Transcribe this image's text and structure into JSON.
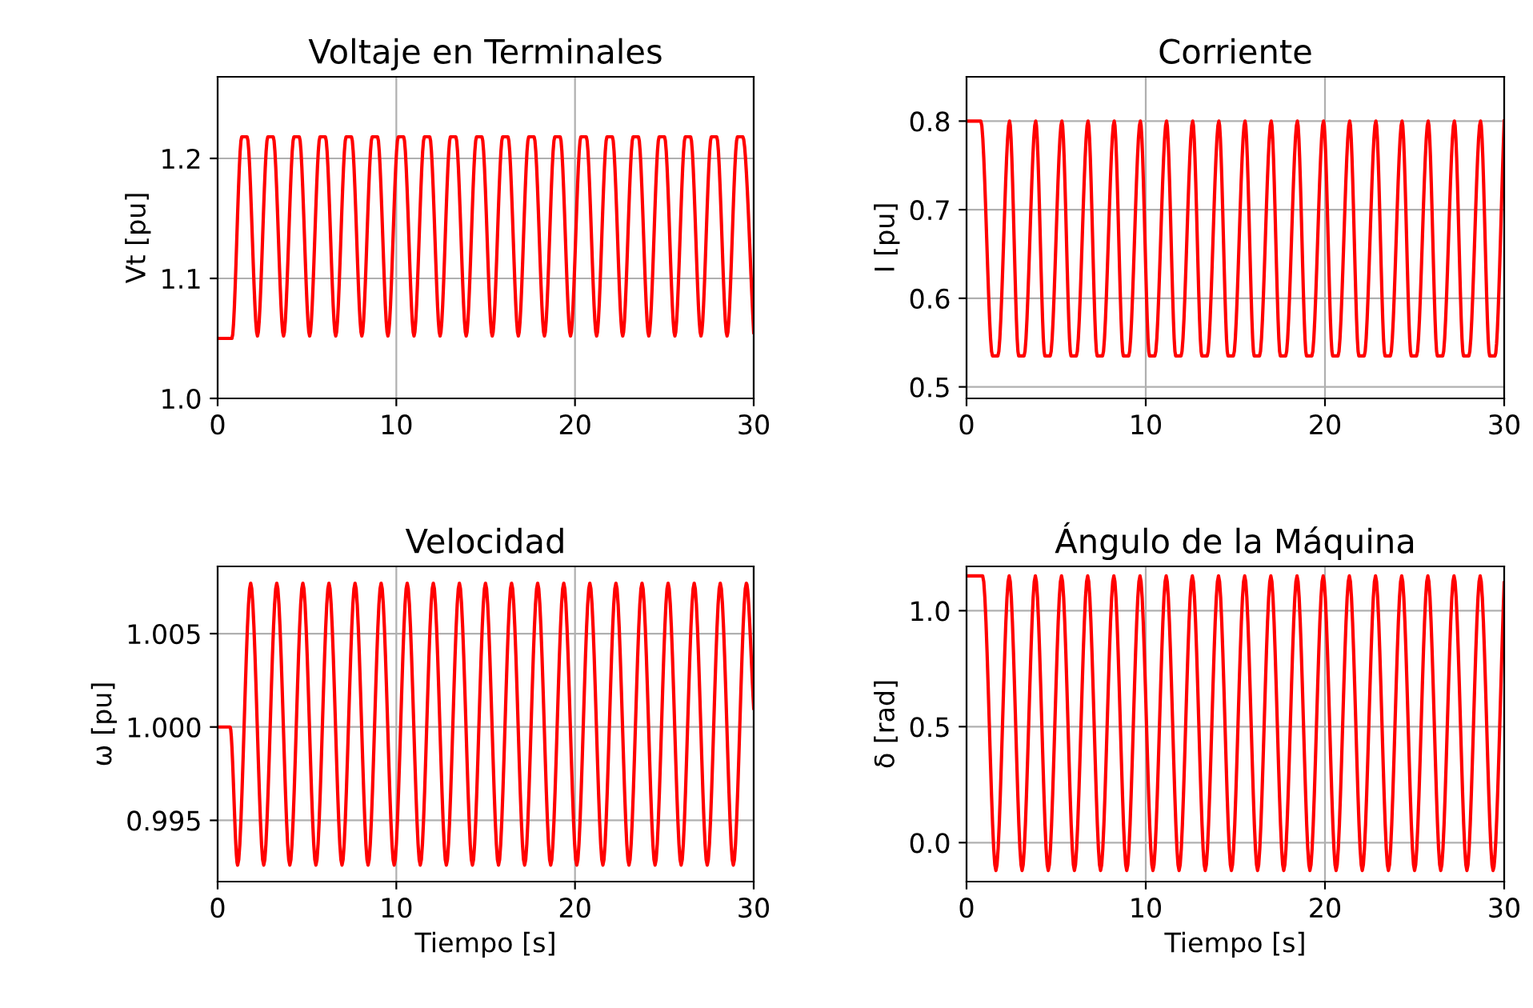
{
  "chart_data": [
    {
      "type": "line",
      "title": "Voltaje en Terminales",
      "ylabel": "Vt [pu]",
      "xlim": [
        0,
        30
      ],
      "xticks": [
        0,
        10,
        20,
        30
      ],
      "ylim": [
        1.0,
        1.268
      ],
      "yticks": [
        {
          "value": 1.0,
          "label": "1.0"
        },
        1.1,
        1.2
      ],
      "grid": true,
      "legend": false,
      "marker": "none",
      "line_style": "solid",
      "series": [
        {
          "color": "#ff0000",
          "x": [
            0,
            0.8,
            1.35,
            1.65,
            2.23,
            2.81,
            3.11,
            3.69,
            4.27,
            4.57,
            5.15,
            5.73,
            6.03,
            6.61,
            7.19,
            7.49,
            8.07,
            8.65,
            8.95,
            9.53,
            10.11,
            10.41,
            10.99,
            11.57,
            11.87,
            12.45,
            13.03,
            13.33,
            13.91,
            14.49,
            14.79,
            15.37,
            15.95,
            16.25,
            16.83,
            17.41,
            17.71,
            18.29,
            18.87,
            19.17,
            19.75,
            20.33,
            20.63,
            21.21,
            21.79,
            22.09,
            22.67,
            23.25,
            23.55,
            24.13,
            24.71,
            25.01,
            25.59,
            26.17,
            26.47,
            27.05,
            27.63,
            27.93,
            28.51,
            29.09,
            29.39,
            30
          ],
          "values": [
            1.05,
            1.05,
            1.218,
            1.218,
            1.052,
            1.218,
            1.218,
            1.052,
            1.218,
            1.218,
            1.052,
            1.218,
            1.218,
            1.052,
            1.218,
            1.218,
            1.052,
            1.218,
            1.218,
            1.052,
            1.218,
            1.218,
            1.052,
            1.218,
            1.218,
            1.052,
            1.218,
            1.218,
            1.052,
            1.218,
            1.218,
            1.052,
            1.218,
            1.218,
            1.052,
            1.218,
            1.218,
            1.052,
            1.218,
            1.218,
            1.052,
            1.218,
            1.218,
            1.052,
            1.218,
            1.218,
            1.052,
            1.218,
            1.218,
            1.052,
            1.218,
            1.218,
            1.052,
            1.218,
            1.218,
            1.052,
            1.218,
            1.218,
            1.052,
            1.218,
            1.218,
            1.055
          ]
        }
      ]
    },
    {
      "type": "line",
      "title": "Corriente",
      "ylabel": "I [pu]",
      "xlim": [
        0,
        30
      ],
      "xticks": [
        0,
        10,
        20,
        30
      ],
      "ylim": [
        0.487,
        0.85
      ],
      "yticks": [
        0.5,
        0.6,
        0.7,
        0.8
      ],
      "grid": true,
      "legend": false,
      "marker": "none",
      "line_style": "solid",
      "series": [
        {
          "color": "#ff0000",
          "x": [
            0,
            0.8,
            1.45,
            1.75,
            2.4,
            2.91,
            3.21,
            3.86,
            4.37,
            4.67,
            5.32,
            5.83,
            6.13,
            6.78,
            7.29,
            7.59,
            8.24,
            8.75,
            9.05,
            9.7,
            10.21,
            10.51,
            11.16,
            11.67,
            11.97,
            12.62,
            13.13,
            13.43,
            14.08,
            14.59,
            14.89,
            15.54,
            16.05,
            16.35,
            17.0,
            17.51,
            17.81,
            18.46,
            18.97,
            19.27,
            19.92,
            20.43,
            20.73,
            21.38,
            21.89,
            22.19,
            22.84,
            23.35,
            23.65,
            24.3,
            24.81,
            25.11,
            25.76,
            26.27,
            26.57,
            27.22,
            27.73,
            28.03,
            28.68,
            29.19,
            29.49,
            30
          ],
          "values": [
            0.8,
            0.8,
            0.535,
            0.535,
            0.8,
            0.535,
            0.535,
            0.8,
            0.535,
            0.535,
            0.8,
            0.535,
            0.535,
            0.8,
            0.535,
            0.535,
            0.8,
            0.535,
            0.535,
            0.8,
            0.535,
            0.535,
            0.8,
            0.535,
            0.535,
            0.8,
            0.535,
            0.535,
            0.8,
            0.535,
            0.535,
            0.8,
            0.535,
            0.535,
            0.8,
            0.535,
            0.535,
            0.8,
            0.535,
            0.535,
            0.8,
            0.535,
            0.535,
            0.8,
            0.535,
            0.535,
            0.8,
            0.535,
            0.535,
            0.8,
            0.535,
            0.535,
            0.8,
            0.535,
            0.535,
            0.8,
            0.535,
            0.535,
            0.8,
            0.535,
            0.535,
            0.8
          ]
        }
      ]
    },
    {
      "type": "line",
      "title": "Velocidad",
      "xlabel": "Tiempo [s]",
      "ylabel": "ω [pu]",
      "xlim": [
        0,
        30
      ],
      "xticks": [
        0,
        10,
        20,
        30
      ],
      "ylim": [
        0.99172,
        1.0086
      ],
      "yticks": [
        {
          "value": 0.995,
          "label": "0.995"
        },
        {
          "value": 1.0,
          "label": "1.000"
        },
        {
          "value": 1.005,
          "label": "1.005"
        }
      ],
      "grid": true,
      "legend": false,
      "marker": "none",
      "line_style": "solid",
      "series": [
        {
          "color": "#ff0000",
          "x": [
            0,
            0.7,
            1.12,
            1.85,
            2.58,
            3.31,
            4.04,
            4.77,
            5.5,
            6.23,
            6.96,
            7.69,
            8.42,
            9.15,
            9.88,
            10.61,
            11.34,
            12.07,
            12.8,
            13.53,
            14.26,
            14.99,
            15.72,
            16.45,
            17.18,
            17.91,
            18.64,
            19.37,
            20.1,
            20.83,
            21.56,
            22.29,
            23.02,
            23.75,
            24.48,
            25.21,
            25.94,
            26.67,
            27.4,
            28.13,
            28.86,
            29.59,
            30
          ],
          "values": [
            1.0,
            1.0,
            0.9926,
            1.0077,
            0.9926,
            1.0077,
            0.9926,
            1.0077,
            0.9926,
            1.0077,
            0.9926,
            1.0077,
            0.9926,
            1.0077,
            0.9926,
            1.0077,
            0.9926,
            1.0077,
            0.9926,
            1.0077,
            0.9926,
            1.0077,
            0.9926,
            1.0077,
            0.9926,
            1.0077,
            0.9926,
            1.0077,
            0.9926,
            1.0077,
            0.9926,
            1.0077,
            0.9926,
            1.0077,
            0.9926,
            1.0077,
            0.9926,
            1.0077,
            0.9926,
            1.0077,
            0.9926,
            1.0077,
            1.001
          ]
        }
      ]
    },
    {
      "type": "line",
      "title": "Ángulo de la Máquina",
      "xlabel": "Tiempo [s]",
      "ylabel": "δ [rad]",
      "xlim": [
        0,
        30
      ],
      "xticks": [
        0,
        10,
        20,
        30
      ],
      "ylim": [
        -0.168,
        1.191
      ],
      "yticks": [
        {
          "value": 0.0,
          "label": "0.0"
        },
        0.5,
        {
          "value": 1.0,
          "label": "1.0"
        }
      ],
      "grid": true,
      "legend": false,
      "marker": "none",
      "line_style": "solid",
      "series": [
        {
          "color": "#ff0000",
          "x": [
            0,
            0.9,
            1.64,
            2.38,
            3.1,
            3.84,
            4.56,
            5.3,
            6.02,
            6.76,
            7.48,
            8.22,
            8.94,
            9.68,
            10.4,
            11.14,
            11.86,
            12.6,
            13.32,
            14.06,
            14.78,
            15.52,
            16.24,
            16.98,
            17.7,
            18.44,
            19.16,
            19.9,
            20.62,
            21.36,
            22.08,
            22.82,
            23.54,
            24.28,
            25.0,
            25.74,
            26.46,
            27.2,
            27.92,
            28.66,
            29.38,
            30
          ],
          "values": [
            1.15,
            1.15,
            -0.12,
            1.15,
            -0.12,
            1.15,
            -0.12,
            1.15,
            -0.12,
            1.15,
            -0.12,
            1.15,
            -0.12,
            1.15,
            -0.12,
            1.15,
            -0.12,
            1.15,
            -0.12,
            1.15,
            -0.12,
            1.15,
            -0.12,
            1.15,
            -0.12,
            1.15,
            -0.12,
            1.15,
            -0.12,
            1.15,
            -0.12,
            1.15,
            -0.12,
            1.15,
            -0.12,
            1.15,
            -0.12,
            1.15,
            -0.12,
            1.15,
            -0.12,
            1.12
          ]
        }
      ]
    }
  ]
}
